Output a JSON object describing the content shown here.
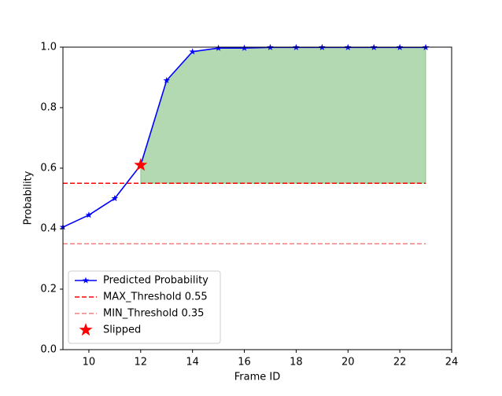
{
  "chart_data": {
    "type": "line",
    "x_label": "Frame ID",
    "y_label": "Probability",
    "x": [
      9,
      10,
      11,
      12,
      13,
      14,
      15,
      16,
      17,
      18,
      19,
      20,
      21,
      22,
      23
    ],
    "series": [
      {
        "name": "Predicted Probability",
        "color": "#0000ff",
        "style": "solid",
        "marker": "star",
        "values": [
          0.405,
          0.445,
          0.5,
          0.61,
          0.89,
          0.985,
          0.997,
          0.997,
          0.999,
          0.999,
          0.999,
          0.999,
          0.999,
          0.999,
          0.999
        ]
      },
      {
        "name": "MAX_Threshold 0.55",
        "color": "#ff0000",
        "style": "dashed",
        "values": [
          0.55,
          0.55,
          0.55,
          0.55,
          0.55,
          0.55,
          0.55,
          0.55,
          0.55,
          0.55,
          0.55,
          0.55,
          0.55,
          0.55,
          0.55
        ]
      },
      {
        "name": "MIN_Threshold 0.35",
        "color": "#f08080",
        "style": "dashed",
        "values": [
          0.35,
          0.35,
          0.35,
          0.35,
          0.35,
          0.35,
          0.35,
          0.35,
          0.35,
          0.35,
          0.35,
          0.35,
          0.35,
          0.35,
          0.35
        ]
      }
    ],
    "points": [
      {
        "name": "Slipped",
        "color": "#ff0000",
        "marker": "star",
        "x": 12,
        "y": 0.61
      }
    ],
    "fill": {
      "color": "#008000",
      "opacity": 0.3,
      "x_start": 12
    },
    "xlim": [
      9,
      24
    ],
    "xticks": [
      10,
      12,
      14,
      16,
      18,
      20,
      22,
      24
    ],
    "ylim": [
      0,
      1
    ],
    "yticks": [
      {
        "value": 0,
        "label": "0.0"
      },
      0.2,
      0.4,
      0.6,
      0.8,
      {
        "value": 1,
        "label": "1.0"
      }
    ],
    "legend": "lower left"
  }
}
